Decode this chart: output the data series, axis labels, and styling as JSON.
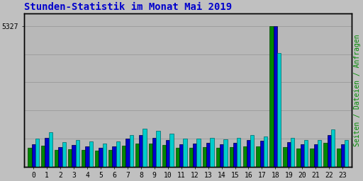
{
  "title": "Stunden-Statistik im Monat Mai 2019",
  "title_color": "#0000cc",
  "title_fontsize": 10,
  "ylabel_right": "Seiten / Dateien / Anfragen",
  "ylabel_right_color": "#008800",
  "ytick_label": "5327",
  "background_color": "#c0c0c0",
  "plot_bg_color": "#b8b8b8",
  "hours": [
    0,
    1,
    2,
    3,
    4,
    5,
    6,
    7,
    8,
    9,
    10,
    11,
    12,
    13,
    14,
    15,
    16,
    17,
    18,
    19,
    20,
    21,
    22,
    23
  ],
  "anfragen": [
    700,
    800,
    630,
    670,
    640,
    600,
    640,
    800,
    870,
    870,
    820,
    720,
    710,
    730,
    700,
    730,
    780,
    760,
    5327,
    730,
    680,
    680,
    900,
    680
  ],
  "seiten": [
    850,
    1100,
    750,
    820,
    770,
    700,
    770,
    1050,
    1200,
    1100,
    1000,
    860,
    880,
    900,
    860,
    900,
    1000,
    980,
    5327,
    930,
    840,
    850,
    1200,
    840
  ],
  "dateien": [
    1050,
    1300,
    930,
    1000,
    960,
    870,
    950,
    1200,
    1450,
    1350,
    1250,
    1050,
    1060,
    1080,
    1040,
    1080,
    1200,
    1150,
    4300,
    1100,
    1020,
    1020,
    1400,
    1020
  ],
  "color_seiten": "#0000cc",
  "color_dateien": "#00cccc",
  "color_anfragen": "#008800",
  "bar_width": 0.28,
  "grid_color": "#aaaaaa",
  "border_color": "#000000",
  "ylim_max": 5800,
  "font_family": "monospace"
}
